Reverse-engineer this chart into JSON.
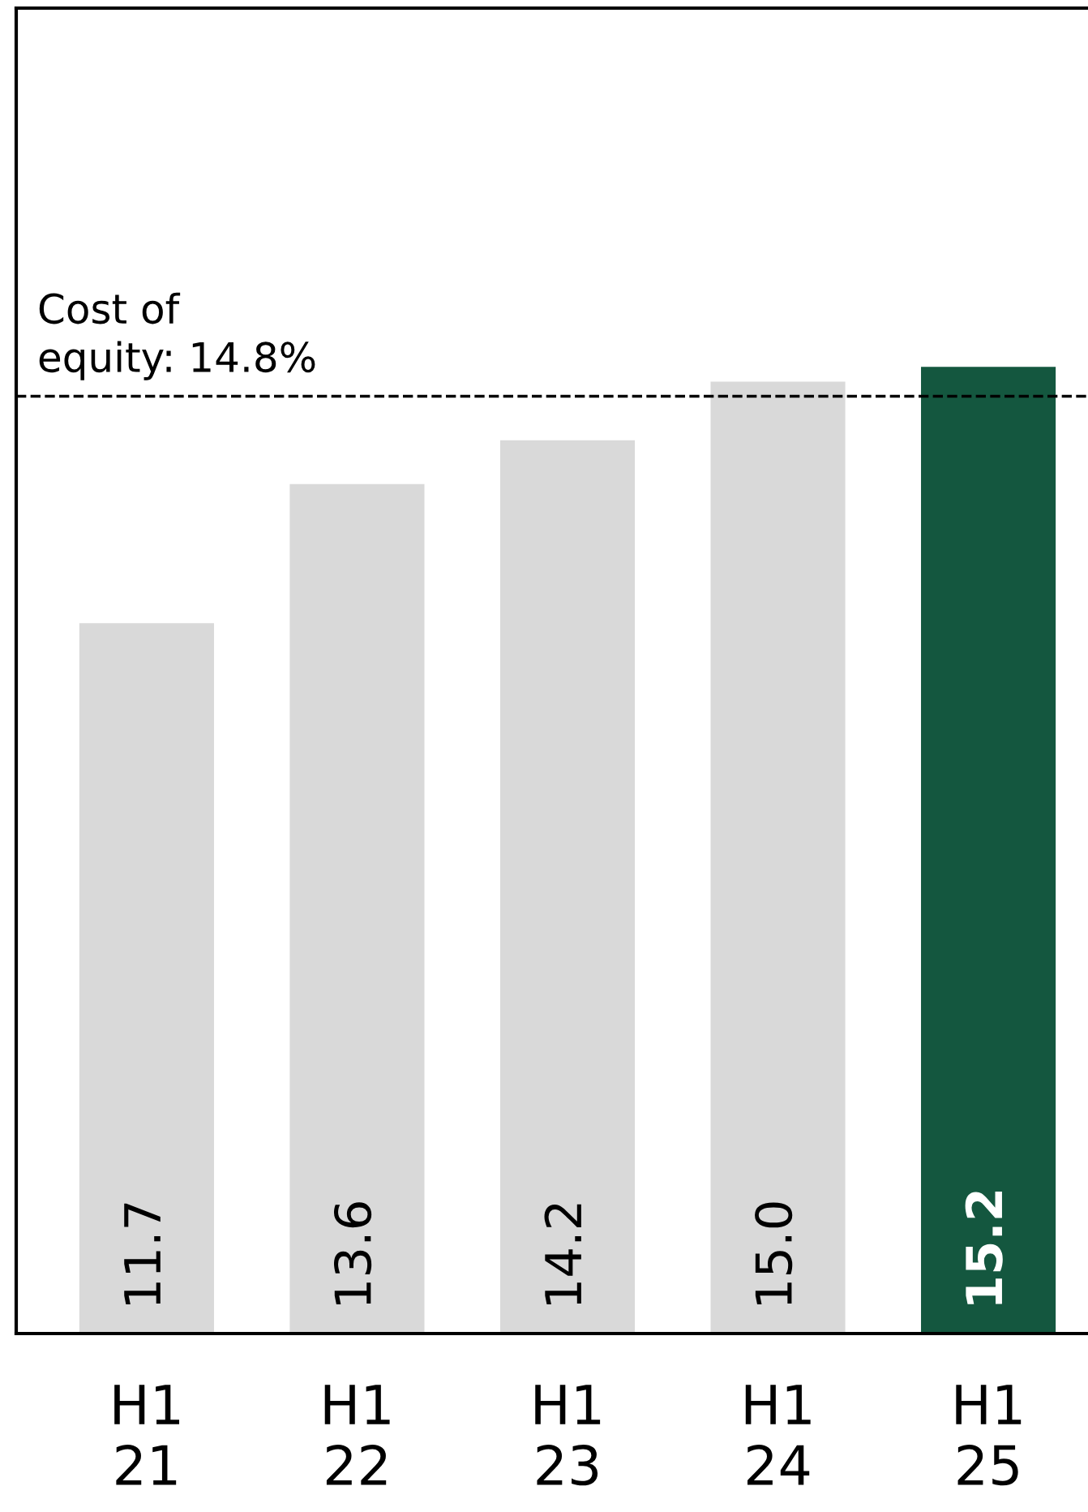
{
  "chart_data": {
    "type": "bar",
    "categories": [
      "H1\n21",
      "H1\n22",
      "H1\n23",
      "H1\n24",
      "H1\n25"
    ],
    "values": [
      11.7,
      13.6,
      14.2,
      15.0,
      15.2
    ],
    "colors": [
      "#d9d9d9",
      "#d9d9d9",
      "#d9d9d9",
      "#d9d9d9",
      "#14573f"
    ],
    "ylim": [
      2,
      20.1
    ],
    "tick_labels": "x",
    "value_labels": [
      "11.7",
      "13.6",
      "14.2",
      "15.0",
      "15.2"
    ],
    "ref_lines": [
      {
        "axis": "y",
        "value": 14.8,
        "label": "Cost of\nequity: 14.8%",
        "color": "#000000",
        "line_style": "dashed"
      }
    ],
    "grid": false,
    "legend": false
  }
}
